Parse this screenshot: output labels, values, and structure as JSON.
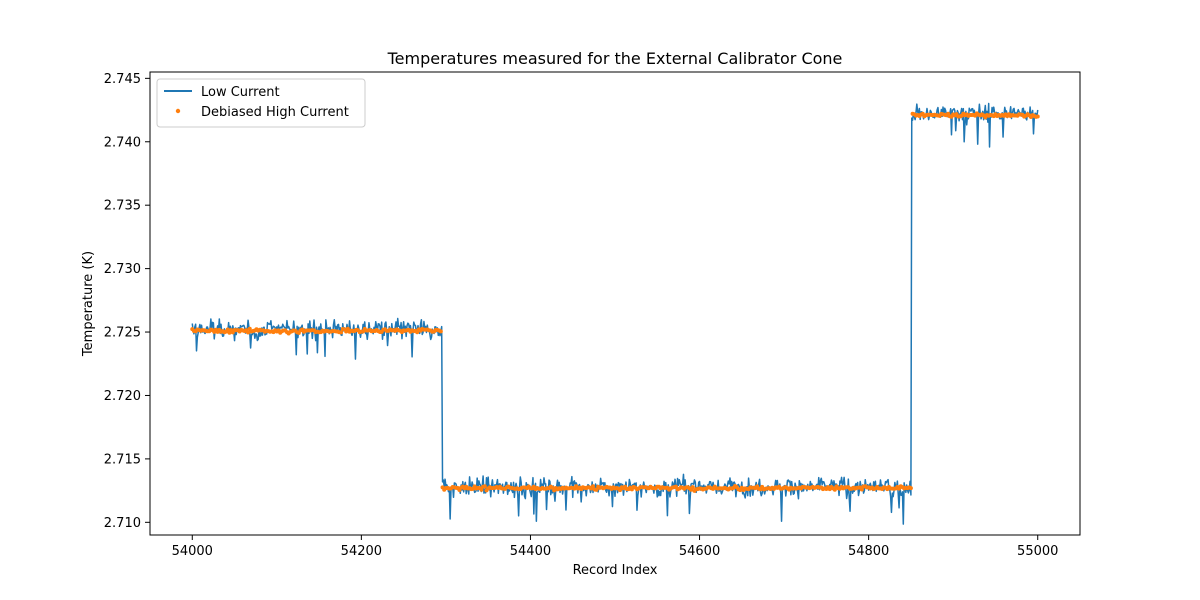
{
  "chart_data": {
    "type": "line",
    "title": "Temperatures measured for the External Calibrator Cone",
    "xlabel": "Record Index",
    "ylabel": "Temperature (K)",
    "xlim": [
      53950,
      55050
    ],
    "ylim": [
      2.709,
      2.7455
    ],
    "xticks": [
      54000,
      54200,
      54400,
      54600,
      54800,
      55000
    ],
    "xtick_labels": [
      "54000",
      "54200",
      "54400",
      "54600",
      "54800",
      "55000"
    ],
    "yticks": [
      2.71,
      2.715,
      2.72,
      2.725,
      2.73,
      2.735,
      2.74,
      2.745
    ],
    "ytick_labels": [
      "2.710",
      "2.715",
      "2.720",
      "2.725",
      "2.730",
      "2.735",
      "2.740",
      "2.745"
    ],
    "grid": false,
    "legend_position": "top-left",
    "x_range": [
      54000,
      55000
    ],
    "segments": [
      {
        "x_start": 54000,
        "x_end": 54295,
        "low_mean": 2.7252,
        "low_noise": 0.0011,
        "high_mean": 2.7251
      },
      {
        "x_start": 54296,
        "x_end": 54850,
        "low_mean": 2.7128,
        "low_noise": 0.0011,
        "high_mean": 2.7127
      },
      {
        "x_start": 54851,
        "x_end": 55000,
        "low_mean": 2.7422,
        "low_noise": 0.001,
        "high_mean": 2.7421
      }
    ],
    "series": [
      {
        "name": "Low Current",
        "kind": "line",
        "color": "#1f77b4"
      },
      {
        "name": "Debiased High Current",
        "kind": "scatter",
        "color": "#ff7f0e"
      }
    ]
  }
}
